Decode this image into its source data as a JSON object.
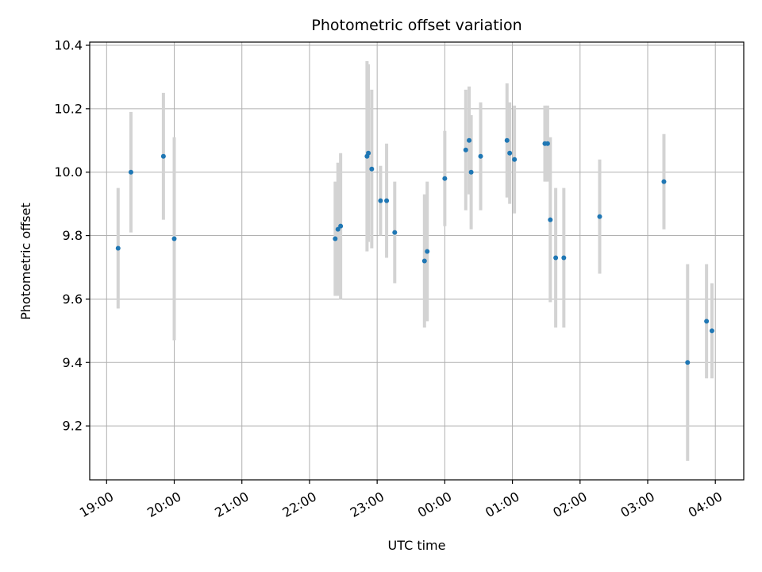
{
  "chart_data": {
    "type": "scatter",
    "title": "Photometric offset variation",
    "xlabel": "UTC time",
    "ylabel": "Photometric offset",
    "xlim_hours": [
      18.75,
      28.42
    ],
    "ylim": [
      9.03,
      10.41
    ],
    "grid": true,
    "x_ticks": [
      {
        "hour": 19,
        "label": "19:00"
      },
      {
        "hour": 20,
        "label": "20:00"
      },
      {
        "hour": 21,
        "label": "21:00"
      },
      {
        "hour": 22,
        "label": "22:00"
      },
      {
        "hour": 23,
        "label": "23:00"
      },
      {
        "hour": 24,
        "label": "00:00"
      },
      {
        "hour": 25,
        "label": "01:00"
      },
      {
        "hour": 26,
        "label": "02:00"
      },
      {
        "hour": 27,
        "label": "03:00"
      },
      {
        "hour": 28,
        "label": "04:00"
      }
    ],
    "y_ticks": [
      {
        "value": 9.2,
        "label": "9.2"
      },
      {
        "value": 9.4,
        "label": "9.4"
      },
      {
        "value": 9.6,
        "label": "9.6"
      },
      {
        "value": 9.8,
        "label": "9.8"
      },
      {
        "value": 10.0,
        "label": "10.0"
      },
      {
        "value": 10.2,
        "label": "10.2"
      },
      {
        "value": 10.4,
        "label": "10.4"
      }
    ],
    "points": [
      {
        "x": 19.17,
        "y": 9.76,
        "err": 0.19
      },
      {
        "x": 19.36,
        "y": 10.0,
        "err": 0.19
      },
      {
        "x": 19.84,
        "y": 10.05,
        "err": 0.2
      },
      {
        "x": 20.0,
        "y": 9.79,
        "err": 0.32
      },
      {
        "x": 22.38,
        "y": 9.79,
        "err": 0.18
      },
      {
        "x": 22.42,
        "y": 9.82,
        "err": 0.21
      },
      {
        "x": 22.46,
        "y": 9.83,
        "err": 0.23
      },
      {
        "x": 22.85,
        "y": 10.05,
        "err": 0.3
      },
      {
        "x": 22.87,
        "y": 10.06,
        "err": 0.28
      },
      {
        "x": 22.92,
        "y": 10.01,
        "err": 0.25
      },
      {
        "x": 23.05,
        "y": 9.91,
        "err": 0.11
      },
      {
        "x": 23.14,
        "y": 9.91,
        "err": 0.18
      },
      {
        "x": 23.26,
        "y": 9.81,
        "err": 0.16
      },
      {
        "x": 23.7,
        "y": 9.72,
        "err": 0.21
      },
      {
        "x": 23.74,
        "y": 9.75,
        "err": 0.22
      },
      {
        "x": 24.0,
        "y": 9.98,
        "err": 0.15
      },
      {
        "x": 24.31,
        "y": 10.07,
        "err": 0.19
      },
      {
        "x": 24.36,
        "y": 10.1,
        "err": 0.17
      },
      {
        "x": 24.39,
        "y": 10.0,
        "err": 0.18
      },
      {
        "x": 24.53,
        "y": 10.05,
        "err": 0.17
      },
      {
        "x": 24.92,
        "y": 10.1,
        "err": 0.18
      },
      {
        "x": 24.96,
        "y": 10.06,
        "err": 0.16
      },
      {
        "x": 25.03,
        "y": 10.04,
        "err": 0.17
      },
      {
        "x": 25.48,
        "y": 10.09,
        "err": 0.12
      },
      {
        "x": 25.52,
        "y": 10.09,
        "err": 0.12
      },
      {
        "x": 25.56,
        "y": 9.85,
        "err": 0.26
      },
      {
        "x": 25.64,
        "y": 9.73,
        "err": 0.22
      },
      {
        "x": 25.76,
        "y": 9.73,
        "err": 0.22
      },
      {
        "x": 26.29,
        "y": 9.86,
        "err": 0.18
      },
      {
        "x": 27.24,
        "y": 9.97,
        "err": 0.15
      },
      {
        "x": 27.59,
        "y": 9.4,
        "err": 0.31
      },
      {
        "x": 27.87,
        "y": 9.53,
        "err": 0.18
      },
      {
        "x": 27.95,
        "y": 9.5,
        "err": 0.15
      }
    ]
  }
}
